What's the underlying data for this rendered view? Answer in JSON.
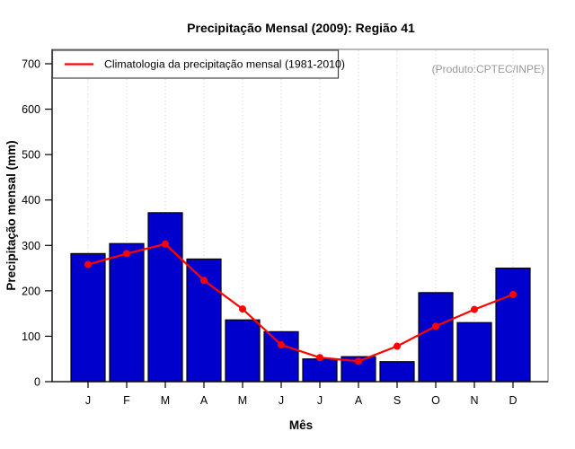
{
  "title": "Precipitação Mensal (2009): Região 41",
  "credit": "(Produto:CPTEC/INPE)",
  "legend": {
    "label": "Climatologia da precipitação mensal (1981-2010)"
  },
  "axes": {
    "x_label": "Mês",
    "y_label": "Precipitação mensal (mm)"
  },
  "chart_data": {
    "type": "bar",
    "title": "Precipitação Mensal (2009): Região 41",
    "xlabel": "Mês",
    "ylabel": "Precipitação mensal (mm)",
    "categories": [
      "J",
      "F",
      "M",
      "A",
      "M",
      "J",
      "J",
      "A",
      "S",
      "O",
      "N",
      "D"
    ],
    "series": [
      {
        "name": "precipitacao_mensal_2009",
        "type": "bar",
        "values": [
          282,
          304,
          372,
          270,
          136,
          110,
          50,
          55,
          44,
          196,
          130,
          250
        ]
      },
      {
        "name": "Climatologia da precipitação mensal (1981-2010)",
        "type": "line",
        "values": [
          258,
          282,
          303,
          223,
          160,
          81,
          53,
          45,
          78,
          122,
          159,
          192
        ]
      }
    ],
    "ylim": [
      0,
      700
    ],
    "yticks": [
      0,
      100,
      200,
      300,
      400,
      500,
      600,
      700
    ],
    "grid": "vertical-dotted",
    "legend_position": "top-left"
  },
  "colors": {
    "bar_fill": "#0000CC",
    "bar_stroke": "#000000",
    "line": "#FF0000",
    "grid": "#cccccc",
    "frame": "#888888",
    "axis": "#000000",
    "credit_text": "#999999"
  }
}
